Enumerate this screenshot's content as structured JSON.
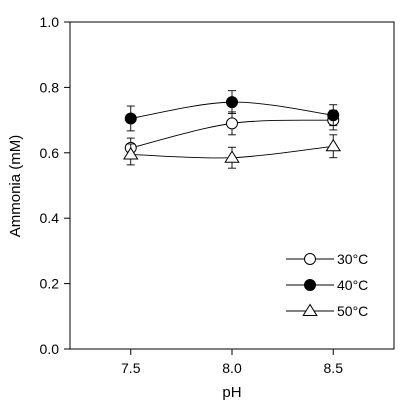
{
  "chart_data": {
    "type": "line",
    "x": [
      7.5,
      8.0,
      8.5
    ],
    "xlabel": "pH",
    "ylabel": "Ammonia (mM)",
    "xlim": [
      7.2,
      8.8
    ],
    "ylim": [
      0.0,
      1.0
    ],
    "xticks": [
      "7.5",
      "8.0",
      "8.5"
    ],
    "yticks": [
      "0.0",
      "0.2",
      "0.4",
      "0.6",
      "0.8",
      "1.0"
    ],
    "grid": false,
    "legend_position": "bottom-right",
    "series": [
      {
        "name": "30°C",
        "marker": "circle-open",
        "values": [
          0.615,
          0.69,
          0.7
        ],
        "errors": [
          0.03,
          0.035,
          0.03
        ]
      },
      {
        "name": "40°C",
        "marker": "circle-filled",
        "values": [
          0.705,
          0.755,
          0.715
        ],
        "errors": [
          0.038,
          0.035,
          0.032
        ]
      },
      {
        "name": "50°C",
        "marker": "triangle-open",
        "values": [
          0.595,
          0.585,
          0.62
        ],
        "errors": [
          0.032,
          0.032,
          0.035
        ]
      }
    ]
  }
}
